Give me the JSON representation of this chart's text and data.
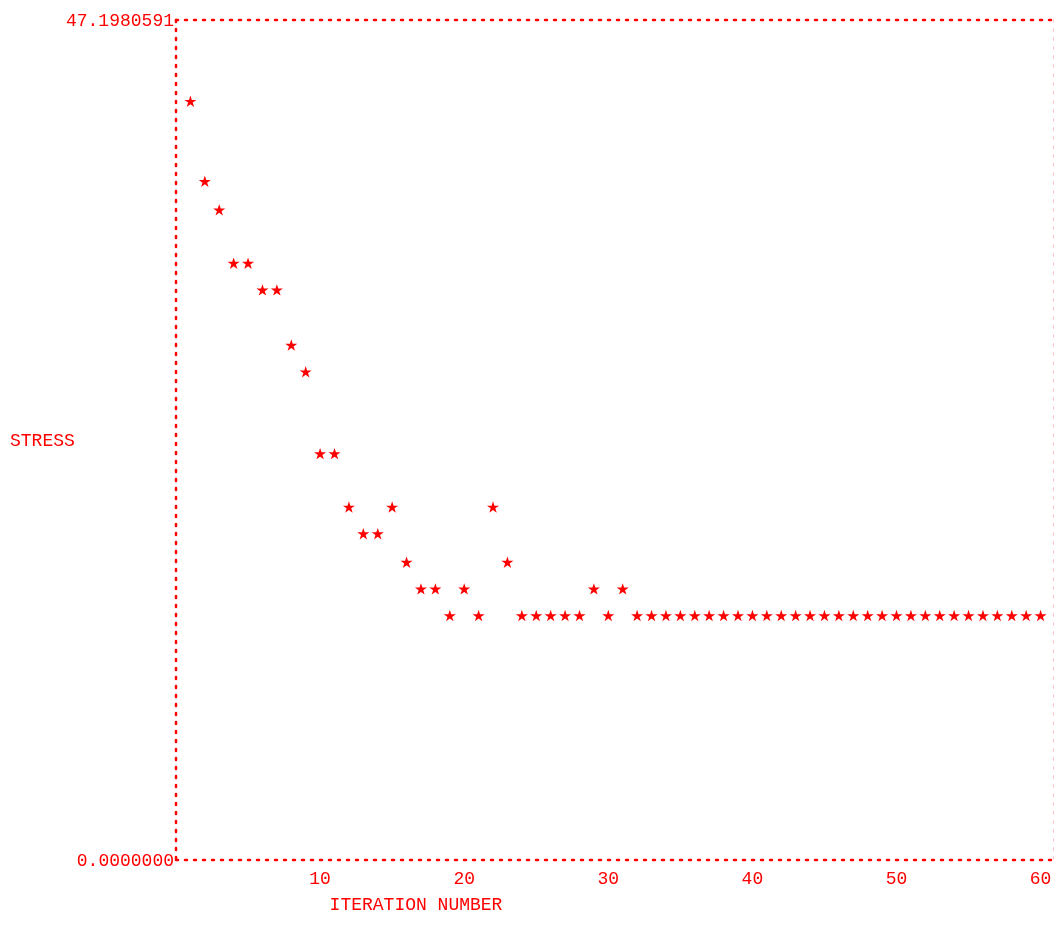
{
  "chart_data": {
    "type": "scatter",
    "xlabel": "ITERATION NUMBER",
    "ylabel": "STRESS",
    "x": [
      1,
      2,
      3,
      4,
      5,
      6,
      7,
      8,
      9,
      10,
      11,
      12,
      13,
      14,
      15,
      16,
      17,
      18,
      19,
      20,
      21,
      22,
      23,
      24,
      25,
      26,
      27,
      28,
      29,
      30,
      31,
      32,
      33,
      34,
      35,
      36,
      37,
      38,
      39,
      40,
      41,
      42,
      43,
      44,
      45,
      46,
      47,
      48,
      49,
      50,
      51,
      52,
      53,
      54,
      55,
      56,
      57,
      58,
      59,
      60
    ],
    "series": [
      {
        "color": "#ff0000",
        "values": [
          42.6,
          38.1,
          36.5,
          33.5,
          33.5,
          32.0,
          32.0,
          28.9,
          27.4,
          22.8,
          22.8,
          19.8,
          18.3,
          18.3,
          19.8,
          16.7,
          15.2,
          15.2,
          13.7,
          15.2,
          13.7,
          19.8,
          16.7,
          13.7,
          13.7,
          13.7,
          13.7,
          13.7,
          15.2,
          13.7,
          15.2,
          13.7,
          13.7,
          13.7,
          13.7,
          13.7,
          13.7,
          13.7,
          13.7,
          13.7,
          13.7,
          13.7,
          13.7,
          13.7,
          13.7,
          13.7,
          13.7,
          13.7,
          13.7,
          13.7,
          13.7,
          13.7,
          13.7,
          13.7,
          13.7,
          13.7,
          13.7,
          13.7,
          13.7,
          13.7
        ]
      }
    ],
    "xlim": [
      0,
      61
    ],
    "xticks": [
      10,
      20,
      30,
      40,
      50,
      60
    ],
    "ylim": [
      0,
      47.1980591
    ],
    "yticks": [
      {
        "value": 0,
        "label": "0.0000000"
      },
      {
        "value": 47.1980591,
        "label": "47.1980591"
      }
    ],
    "marker": "star",
    "grid": false
  }
}
